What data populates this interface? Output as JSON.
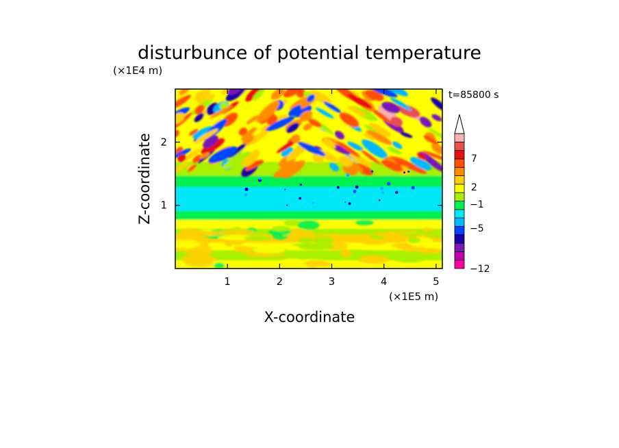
{
  "chart_data": {
    "type": "heatmap",
    "title": "disturbunce of potential temperature",
    "xlabel": "X-coordinate",
    "ylabel": "Z-coordinate",
    "x_unit": "(×1E5 m)",
    "y_unit": "(×1E4 m)",
    "time_label": "t=85800 s",
    "xlim": [
      0,
      5.12
    ],
    "ylim": [
      0,
      2.84
    ],
    "x_ticks": [
      "1",
      "2",
      "3",
      "4",
      "5"
    ],
    "y_ticks": [
      "1",
      "2"
    ],
    "colorbar_tick_labels": [
      "7",
      "2",
      "−1",
      "−5",
      "−12"
    ],
    "colorbar_levels": [
      -12,
      -10,
      -8,
      -6,
      -5,
      -4,
      -3,
      -2,
      -1,
      0,
      1,
      2,
      3,
      5,
      7,
      9,
      11
    ],
    "colorbar_colors": [
      "#ff00a0",
      "#c000b0",
      "#7a18b8",
      "#1a00a8",
      "#0044ff",
      "#00b8ff",
      "#00e8f8",
      "#00f050",
      "#a8f000",
      "#ffff00",
      "#ffd000",
      "#ff8c00",
      "#ff5000",
      "#e81010",
      "#e85050",
      "#f8b0b0"
    ],
    "colorbar_extend": "max",
    "field_description_by_height": [
      {
        "z_range": [
          0,
          0.1
        ],
        "dominant": "yellow"
      },
      {
        "z_range": [
          0.1,
          0.75
        ],
        "dominant": "yellow/orange/green bands"
      },
      {
        "z_range": [
          0.75,
          1.45
        ],
        "dominant": "green and cyan"
      },
      {
        "z_range": [
          1.45,
          2.84
        ],
        "dominant": "wave pattern: red, orange, blue, purple, pink"
      }
    ]
  }
}
